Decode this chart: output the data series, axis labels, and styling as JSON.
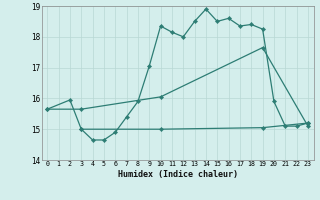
{
  "xlabel": "Humidex (Indice chaleur)",
  "ylabel": "",
  "xlim": [
    -0.5,
    23.5
  ],
  "ylim": [
    14,
    19
  ],
  "yticks": [
    14,
    15,
    16,
    17,
    18,
    19
  ],
  "xticks": [
    0,
    1,
    2,
    3,
    4,
    5,
    6,
    7,
    8,
    9,
    10,
    11,
    12,
    13,
    14,
    15,
    16,
    17,
    18,
    19,
    20,
    21,
    22,
    23
  ],
  "bg_color": "#d4eeec",
  "line_color": "#2d7d74",
  "grid_color": "#b8d8d5",
  "series1": {
    "x": [
      0,
      2,
      3,
      4,
      5,
      6,
      7,
      8,
      9,
      10,
      11,
      12,
      13,
      14,
      15,
      16,
      17,
      18,
      19,
      20,
      21,
      22,
      23
    ],
    "y": [
      15.65,
      15.95,
      15.0,
      14.65,
      14.65,
      14.9,
      15.4,
      15.9,
      17.05,
      18.35,
      18.15,
      18.0,
      18.5,
      18.9,
      18.5,
      18.6,
      18.35,
      18.4,
      18.25,
      15.9,
      15.1,
      15.1,
      15.2
    ]
  },
  "series2": {
    "x": [
      0,
      3,
      10,
      19,
      23
    ],
    "y": [
      15.65,
      15.65,
      16.05,
      17.65,
      15.1
    ]
  },
  "series3": {
    "x": [
      3,
      10,
      19,
      23
    ],
    "y": [
      15.0,
      15.0,
      15.05,
      15.2
    ]
  }
}
